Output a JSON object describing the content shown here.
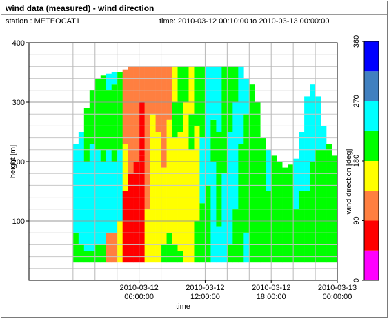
{
  "header": {
    "title": "wind data (measured) - wind direction",
    "station": "station : METEOCAT1",
    "time_range": "time: 2010-03-12 00:10:00 to 2010-03-13 00:00:00"
  },
  "chart_data": {
    "type": "heatmap",
    "title": "wind data (measured) - wind direction",
    "xlabel": "time",
    "ylabel": "height [m]",
    "colorbar_label": "wind direction [deg]",
    "x_range_hours": [
      -4,
      24
    ],
    "ylim": [
      0,
      400
    ],
    "y_ticks": [
      100,
      200,
      300,
      400
    ],
    "x_ticks": [
      {
        "hour": 6,
        "label": [
          "2010-03-12",
          "06:00:00"
        ]
      },
      {
        "hour": 12,
        "label": [
          "2010-03-12",
          "12:00:00"
        ]
      },
      {
        "hour": 18,
        "label": [
          "2010-03-12",
          "18:00:00"
        ]
      },
      {
        "hour": 24,
        "label": [
          "2010-03-13",
          "00:00:00"
        ]
      }
    ],
    "colorbar_ticks": [
      0,
      90,
      180,
      270,
      360
    ],
    "colorbar_ylim": [
      0,
      360
    ],
    "color_bins": [
      {
        "from": 0,
        "to": 45,
        "color": "#ff00ff"
      },
      {
        "from": 45,
        "to": 90,
        "color": "#ff0000"
      },
      {
        "from": 90,
        "to": 135,
        "color": "#ff7f40"
      },
      {
        "from": 135,
        "to": 180,
        "color": "#ffff00"
      },
      {
        "from": 180,
        "to": 225,
        "color": "#00ff00"
      },
      {
        "from": 225,
        "to": 270,
        "color": "#00ffff"
      },
      {
        "from": 270,
        "to": 315,
        "color": "#4080c0"
      },
      {
        "from": 315,
        "to": 360,
        "color": "#0000ff"
      }
    ],
    "grid": true,
    "data_bottom_height_m": 30,
    "columns": [
      {
        "start_h": 0.0,
        "end_h": 0.5,
        "top_m": 230,
        "layers": [
          [
            30,
            80,
            180
          ],
          [
            80,
            230,
            245
          ]
        ]
      },
      {
        "start_h": 0.5,
        "end_h": 1.0,
        "top_m": 250,
        "layers": [
          [
            30,
            60,
            180
          ],
          [
            60,
            250,
            245
          ]
        ]
      },
      {
        "start_h": 1.0,
        "end_h": 1.5,
        "top_m": 290,
        "layers": [
          [
            30,
            50,
            180
          ],
          [
            50,
            200,
            245
          ],
          [
            200,
            290,
            200
          ]
        ]
      },
      {
        "start_h": 1.5,
        "end_h": 2.0,
        "top_m": 320,
        "layers": [
          [
            30,
            50,
            180
          ],
          [
            50,
            230,
            245
          ],
          [
            230,
            320,
            200
          ]
        ]
      },
      {
        "start_h": 2.0,
        "end_h": 2.5,
        "top_m": 340,
        "layers": [
          [
            30,
            60,
            180
          ],
          [
            60,
            220,
            245
          ],
          [
            220,
            340,
            210
          ]
        ]
      },
      {
        "start_h": 2.5,
        "end_h": 3.0,
        "top_m": 345,
        "layers": [
          [
            30,
            60,
            200
          ],
          [
            60,
            200,
            245
          ],
          [
            200,
            345,
            200
          ]
        ]
      },
      {
        "start_h": 3.0,
        "end_h": 3.5,
        "top_m": 348,
        "layers": [
          [
            30,
            80,
            130
          ],
          [
            80,
            220,
            245
          ],
          [
            220,
            320,
            200
          ],
          [
            320,
            348,
            240
          ]
        ]
      },
      {
        "start_h": 3.5,
        "end_h": 4.0,
        "top_m": 350,
        "layers": [
          [
            30,
            80,
            130
          ],
          [
            80,
            200,
            245
          ],
          [
            200,
            330,
            200
          ],
          [
            330,
            350,
            245
          ]
        ]
      },
      {
        "start_h": 4.0,
        "end_h": 4.5,
        "top_m": 350,
        "layers": [
          [
            30,
            100,
            160
          ],
          [
            100,
            220,
            245
          ],
          [
            220,
            350,
            200
          ]
        ]
      },
      {
        "start_h": 4.5,
        "end_h": 5.0,
        "top_m": 355,
        "layers": [
          [
            30,
            150,
            70
          ],
          [
            150,
            230,
            140
          ],
          [
            230,
            355,
            120
          ]
        ]
      },
      {
        "start_h": 5.0,
        "end_h": 5.5,
        "top_m": 360,
        "layers": [
          [
            30,
            180,
            70
          ],
          [
            180,
            360,
            110
          ]
        ]
      },
      {
        "start_h": 5.5,
        "end_h": 6.0,
        "top_m": 360,
        "layers": [
          [
            30,
            200,
            70
          ],
          [
            200,
            280,
            100
          ],
          [
            280,
            360,
            110
          ]
        ]
      },
      {
        "start_h": 6.0,
        "end_h": 6.5,
        "top_m": 360,
        "layers": [
          [
            30,
            210,
            80
          ],
          [
            210,
            300,
            60
          ],
          [
            300,
            360,
            100
          ]
        ]
      },
      {
        "start_h": 6.5,
        "end_h": 7.0,
        "top_m": 360,
        "layers": [
          [
            30,
            120,
            150
          ],
          [
            120,
            260,
            110
          ],
          [
            260,
            360,
            105
          ]
        ]
      },
      {
        "start_h": 7.0,
        "end_h": 7.5,
        "top_m": 360,
        "layers": [
          [
            30,
            110,
            160
          ],
          [
            110,
            280,
            150
          ],
          [
            280,
            360,
            110
          ]
        ]
      },
      {
        "start_h": 7.5,
        "end_h": 8.0,
        "top_m": 360,
        "layers": [
          [
            30,
            100,
            160
          ],
          [
            100,
            250,
            150
          ],
          [
            250,
            360,
            115
          ]
        ]
      },
      {
        "start_h": 8.0,
        "end_h": 8.5,
        "top_m": 360,
        "layers": [
          [
            30,
            60,
            200
          ],
          [
            60,
            190,
            155
          ],
          [
            190,
            320,
            120
          ],
          [
            320,
            360,
            115
          ]
        ]
      },
      {
        "start_h": 8.5,
        "end_h": 9.0,
        "top_m": 360,
        "layers": [
          [
            30,
            80,
            200
          ],
          [
            80,
            270,
            160
          ],
          [
            270,
            360,
            110
          ]
        ]
      },
      {
        "start_h": 9.0,
        "end_h": 9.5,
        "top_m": 360,
        "layers": [
          [
            30,
            60,
            200
          ],
          [
            60,
            240,
            160
          ],
          [
            240,
            300,
            200
          ],
          [
            300,
            360,
            150
          ]
        ]
      },
      {
        "start_h": 9.5,
        "end_h": 10.0,
        "top_m": 360,
        "layers": [
          [
            30,
            50,
            200
          ],
          [
            50,
            250,
            160
          ],
          [
            250,
            360,
            200
          ]
        ]
      },
      {
        "start_h": 10.0,
        "end_h": 10.5,
        "top_m": 360,
        "layers": [
          [
            30,
            300,
            160
          ],
          [
            300,
            360,
            200
          ]
        ]
      },
      {
        "start_h": 10.5,
        "end_h": 11.0,
        "top_m": 360,
        "layers": [
          [
            30,
            220,
            160
          ],
          [
            220,
            280,
            200
          ],
          [
            280,
            360,
            160
          ]
        ]
      },
      {
        "start_h": 11.0,
        "end_h": 11.5,
        "top_m": 360,
        "layers": [
          [
            30,
            100,
            200
          ],
          [
            100,
            260,
            160
          ],
          [
            260,
            360,
            200
          ]
        ]
      },
      {
        "start_h": 11.5,
        "end_h": 12.0,
        "top_m": 360,
        "layers": [
          [
            30,
            130,
            200
          ],
          [
            130,
            240,
            245
          ],
          [
            240,
            360,
            200
          ]
        ]
      },
      {
        "start_h": 12.0,
        "end_h": 12.5,
        "top_m": 360,
        "layers": [
          [
            30,
            160,
            200
          ],
          [
            160,
            360,
            245
          ]
        ]
      },
      {
        "start_h": 12.5,
        "end_h": 13.0,
        "top_m": 360,
        "layers": [
          [
            30,
            200,
            245
          ],
          [
            200,
            270,
            200
          ],
          [
            270,
            360,
            245
          ]
        ]
      },
      {
        "start_h": 13.0,
        "end_h": 13.5,
        "top_m": 360,
        "layers": [
          [
            30,
            90,
            245
          ],
          [
            90,
            250,
            200
          ],
          [
            250,
            360,
            245
          ]
        ]
      },
      {
        "start_h": 13.5,
        "end_h": 14.0,
        "top_m": 360,
        "layers": [
          [
            30,
            180,
            245
          ],
          [
            180,
            360,
            200
          ]
        ]
      },
      {
        "start_h": 14.0,
        "end_h": 14.5,
        "top_m": 360,
        "layers": [
          [
            30,
            60,
            200
          ],
          [
            60,
            250,
            245
          ],
          [
            250,
            360,
            200
          ]
        ]
      },
      {
        "start_h": 14.5,
        "end_h": 15.0,
        "top_m": 360,
        "layers": [
          [
            30,
            120,
            200
          ],
          [
            120,
            300,
            245
          ],
          [
            300,
            360,
            200
          ]
        ]
      },
      {
        "start_h": 15.0,
        "end_h": 15.5,
        "top_m": 360,
        "layers": [
          [
            30,
            230,
            200
          ],
          [
            230,
            360,
            245
          ]
        ]
      },
      {
        "start_h": 15.5,
        "end_h": 16.0,
        "top_m": 340,
        "layers": [
          [
            30,
            80,
            245
          ],
          [
            80,
            280,
            200
          ],
          [
            280,
            340,
            245
          ]
        ]
      },
      {
        "start_h": 16.0,
        "end_h": 16.5,
        "top_m": 330,
        "layers": [
          [
            30,
            330,
            200
          ]
        ]
      },
      {
        "start_h": 16.5,
        "end_h": 17.0,
        "top_m": 300,
        "layers": [
          [
            30,
            300,
            200
          ]
        ]
      },
      {
        "start_h": 17.0,
        "end_h": 17.5,
        "top_m": 240,
        "layers": [
          [
            30,
            240,
            200
          ]
        ]
      },
      {
        "start_h": 17.5,
        "end_h": 18.0,
        "top_m": 220,
        "layers": [
          [
            30,
            150,
            200
          ],
          [
            150,
            220,
            245
          ]
        ]
      },
      {
        "start_h": 18.0,
        "end_h": 18.5,
        "top_m": 210,
        "layers": [
          [
            30,
            210,
            200
          ]
        ]
      },
      {
        "start_h": 18.5,
        "end_h": 19.0,
        "top_m": 200,
        "layers": [
          [
            30,
            200,
            200
          ]
        ]
      },
      {
        "start_h": 19.0,
        "end_h": 19.5,
        "top_m": 190,
        "layers": [
          [
            30,
            190,
            200
          ]
        ]
      },
      {
        "start_h": 19.5,
        "end_h": 20.0,
        "top_m": 195,
        "layers": [
          [
            30,
            195,
            200
          ]
        ]
      },
      {
        "start_h": 20.0,
        "end_h": 20.5,
        "top_m": 205,
        "layers": [
          [
            30,
            120,
            200
          ],
          [
            120,
            205,
            245
          ]
        ]
      },
      {
        "start_h": 20.5,
        "end_h": 21.0,
        "top_m": 250,
        "layers": [
          [
            30,
            150,
            200
          ],
          [
            150,
            250,
            245
          ]
        ]
      },
      {
        "start_h": 21.0,
        "end_h": 21.5,
        "top_m": 310,
        "layers": [
          [
            30,
            150,
            200
          ],
          [
            150,
            310,
            245
          ]
        ]
      },
      {
        "start_h": 21.5,
        "end_h": 22.0,
        "top_m": 330,
        "layers": [
          [
            30,
            200,
            200
          ],
          [
            200,
            330,
            245
          ]
        ]
      },
      {
        "start_h": 22.0,
        "end_h": 22.5,
        "top_m": 310,
        "layers": [
          [
            30,
            220,
            200
          ],
          [
            220,
            310,
            245
          ]
        ]
      },
      {
        "start_h": 22.5,
        "end_h": 23.0,
        "top_m": 260,
        "layers": [
          [
            30,
            220,
            200
          ],
          [
            220,
            260,
            245
          ]
        ]
      },
      {
        "start_h": 23.0,
        "end_h": 23.5,
        "top_m": 230,
        "layers": [
          [
            30,
            230,
            200
          ]
        ]
      },
      {
        "start_h": 23.5,
        "end_h": 24.0,
        "top_m": 210,
        "layers": [
          [
            30,
            210,
            200
          ]
        ]
      }
    ]
  }
}
